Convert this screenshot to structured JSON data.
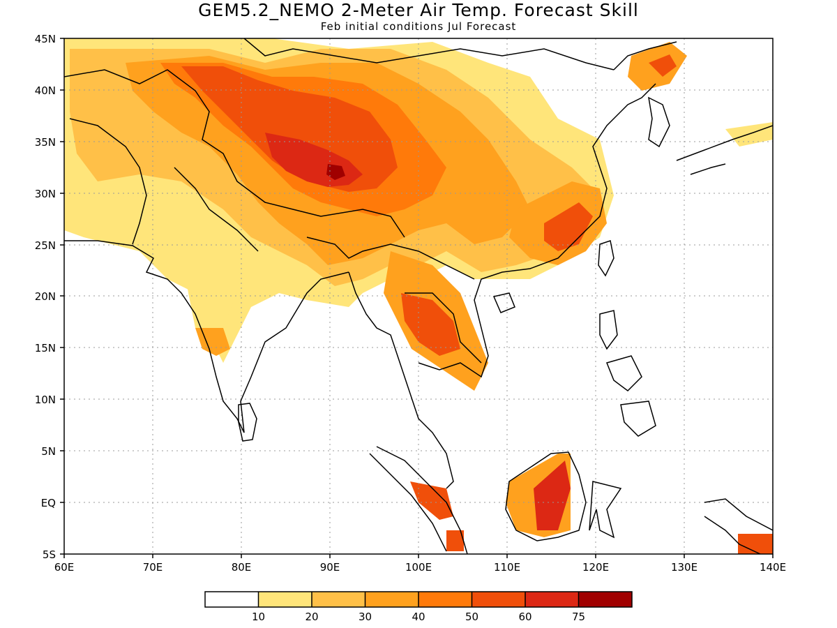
{
  "title": "GEM5.2_NEMO 2-Meter Air Temp. Forecast Skill",
  "subtitle": "Feb initial conditions  Jul Forecast",
  "map": {
    "lon_range": [
      60,
      140
    ],
    "lat_range": [
      -5,
      45
    ],
    "lon_ticks": [
      "60E",
      "70E",
      "80E",
      "90E",
      "100E",
      "110E",
      "120E",
      "130E",
      "140E"
    ],
    "lat_ticks": [
      "5S",
      "EQ",
      "5N",
      "10N",
      "15N",
      "20N",
      "25N",
      "30N",
      "35N",
      "40N",
      "45N"
    ],
    "gridlines": "dotted",
    "coastlines": true
  },
  "colorbar": {
    "colors": [
      "#ffffff",
      "#ffe57a",
      "#ffc048",
      "#ffa11e",
      "#ff7a0a",
      "#f04f0a",
      "#dc2814",
      "#a00000"
    ],
    "labels": [
      "10",
      "20",
      "30",
      "40",
      "50",
      "60",
      "75"
    ]
  }
}
